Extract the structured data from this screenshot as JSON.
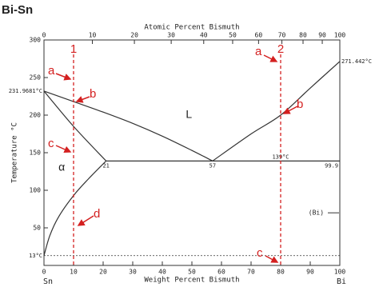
{
  "header": {
    "title": "Bi-Sn"
  },
  "axes": {
    "top_title": "Atomic Percent Bismuth",
    "bottom_title": "Weight Percent Bismuth",
    "left_title": "Temperature °C",
    "top_ticks": [
      0,
      10,
      20,
      30,
      40,
      50,
      60,
      70,
      80,
      90,
      100
    ],
    "bottom_ticks": [
      0,
      10,
      20,
      30,
      40,
      50,
      60,
      70,
      80,
      90,
      100
    ],
    "left_ticks": [
      50,
      100,
      150,
      200,
      250,
      300
    ],
    "left_end": "Sn",
    "right_end": "Bi"
  },
  "curves": [
    [
      [
        0,
        231.97
      ],
      [
        10,
        218
      ],
      [
        20,
        204
      ],
      [
        30,
        189
      ],
      [
        40,
        172
      ],
      [
        50,
        153
      ],
      [
        57,
        139
      ]
    ],
    [
      [
        57,
        139
      ],
      [
        70,
        175
      ],
      [
        80,
        200
      ],
      [
        90,
        236
      ],
      [
        100,
        271.44
      ]
    ],
    [
      [
        0,
        231.97
      ],
      [
        10,
        185
      ],
      [
        21,
        139
      ]
    ],
    [
      [
        21,
        139
      ],
      [
        15,
        115
      ],
      [
        10,
        93
      ],
      [
        5,
        65
      ],
      [
        2,
        40
      ],
      [
        0,
        13
      ]
    ],
    [
      [
        21,
        139
      ],
      [
        100,
        139
      ]
    ]
  ],
  "dotted_line": [
    [
      0,
      13
    ],
    [
      100,
      13
    ]
  ],
  "point_labels": [
    {
      "text": "231.9681°C",
      "at": [
        0,
        231.97
      ],
      "side": "left"
    },
    {
      "text": "271.442°C",
      "at": [
        100,
        271.44
      ],
      "side": "right"
    },
    {
      "text": "21",
      "at": [
        21,
        139
      ],
      "side": "below"
    },
    {
      "text": "57",
      "at": [
        57,
        139
      ],
      "side": "below"
    },
    {
      "text": "99.9",
      "at": [
        100,
        139
      ],
      "side": "belowleft"
    },
    {
      "text": "139°C",
      "at": [
        80,
        139
      ],
      "side": "above"
    },
    {
      "text": "13°C",
      "at": [
        0,
        13
      ],
      "side": "left"
    }
  ],
  "phases": [
    {
      "text": "L",
      "at": [
        49,
        200
      ]
    },
    {
      "text": "α",
      "at": [
        6,
        130
      ]
    },
    {
      "text": "(Bi)",
      "at": [
        92,
        70
      ]
    }
  ],
  "markers": [
    {
      "label": "1",
      "wt": 10
    },
    {
      "label": "2",
      "wt": 80
    }
  ],
  "annotations": [
    "a",
    "b",
    "c",
    "d",
    "a",
    "b",
    "c"
  ]
}
